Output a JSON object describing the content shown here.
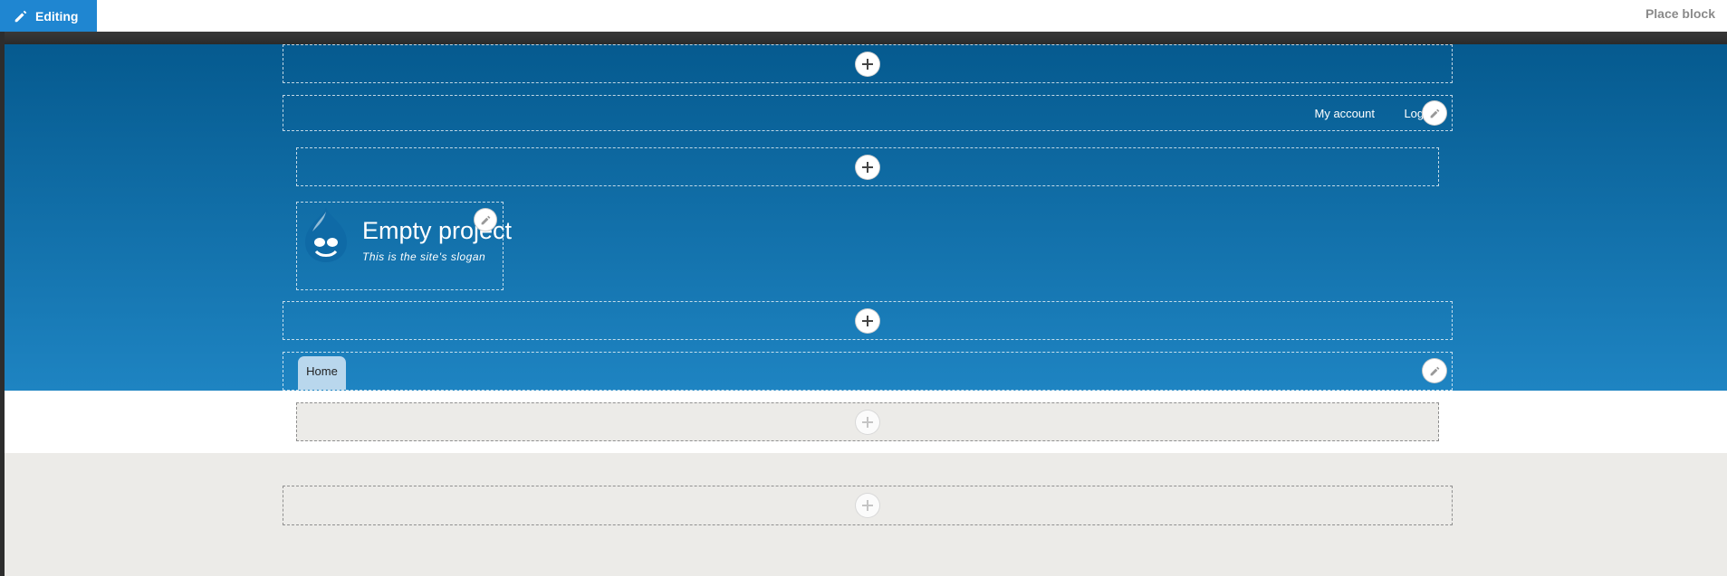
{
  "toolbar": {
    "editing_label": "Editing",
    "place_block_label": "Place block",
    "accent_color": "#1f86d1"
  },
  "header": {
    "account_menu": {
      "my_account": "My account",
      "log_out": "Log o"
    },
    "branding": {
      "site_name": "Empty project",
      "slogan": "This is the site's slogan"
    },
    "primary_menu": {
      "home": "Home"
    },
    "gradient": [
      "#055a8f",
      "#1e84c2"
    ]
  },
  "icons": {
    "add": "plus-icon",
    "edit": "pencil-icon",
    "logo": "drupal-drop-icon"
  }
}
